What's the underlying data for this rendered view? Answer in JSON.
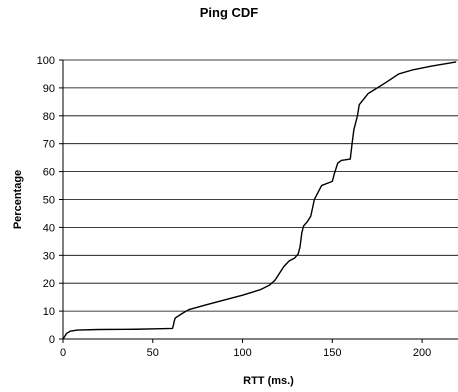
{
  "chart_data": {
    "type": "line",
    "title": "Ping CDF",
    "xlabel": "RTT (ms.)",
    "ylabel": "Percentage",
    "xlim": [
      0,
      220
    ],
    "ylim": [
      0,
      100
    ],
    "xticks": [
      0,
      50,
      100,
      150,
      200
    ],
    "yticks": [
      0,
      10,
      20,
      30,
      40,
      50,
      60,
      70,
      80,
      90,
      100
    ],
    "grid": "horizontal",
    "legend": "none",
    "line_color": "#000000",
    "series": [
      {
        "values": [
          [
            0,
            0
          ],
          [
            1,
            1
          ],
          [
            2,
            2
          ],
          [
            4,
            2.8
          ],
          [
            8,
            3.2
          ],
          [
            20,
            3.4
          ],
          [
            40,
            3.5
          ],
          [
            55,
            3.7
          ],
          [
            61,
            3.8
          ],
          [
            61.5,
            5
          ],
          [
            62,
            6.5
          ],
          [
            62.5,
            7.5
          ],
          [
            66,
            9
          ],
          [
            70,
            10.5
          ],
          [
            80,
            12.3
          ],
          [
            100,
            15.7
          ],
          [
            110,
            17.7
          ],
          [
            115,
            19.3
          ],
          [
            118,
            21
          ],
          [
            120,
            23
          ],
          [
            123,
            26
          ],
          [
            126,
            28
          ],
          [
            129,
            29
          ],
          [
            131,
            30.5
          ],
          [
            132,
            33
          ],
          [
            133,
            38
          ],
          [
            134,
            40.5
          ],
          [
            136,
            42
          ],
          [
            138,
            44
          ],
          [
            139,
            47
          ],
          [
            140,
            50
          ],
          [
            142,
            52.5
          ],
          [
            144,
            55
          ],
          [
            148,
            56
          ],
          [
            150,
            56.5
          ],
          [
            151,
            59
          ],
          [
            152,
            61
          ],
          [
            153,
            63
          ],
          [
            155,
            64
          ],
          [
            160,
            64.5
          ],
          [
            161,
            70
          ],
          [
            162,
            75
          ],
          [
            164,
            80
          ],
          [
            165,
            84
          ],
          [
            170,
            88
          ],
          [
            180,
            92
          ],
          [
            187,
            95
          ],
          [
            195,
            96.5
          ],
          [
            205,
            97.8
          ],
          [
            219,
            99.3
          ]
        ]
      }
    ]
  }
}
